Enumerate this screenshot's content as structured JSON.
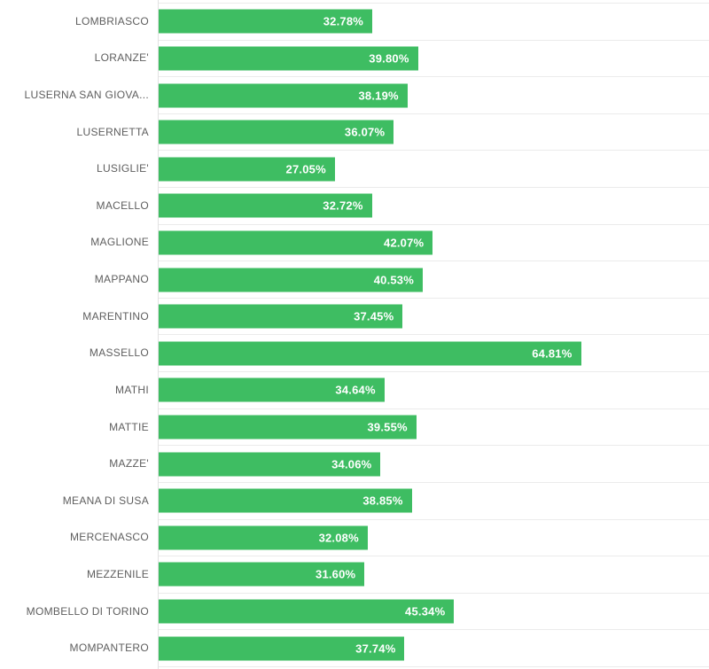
{
  "chart_data": {
    "type": "bar",
    "orientation": "horizontal",
    "title": "",
    "xlabel": "",
    "ylabel": "",
    "categories": [
      "LOMBRIASCO",
      "LORANZE'",
      "LUSERNA SAN GIOVA...",
      "LUSERNETTA",
      "LUSIGLIE'",
      "MACELLO",
      "MAGLIONE",
      "MAPPANO",
      "MARENTINO",
      "MASSELLO",
      "MATHI",
      "MATTIE",
      "MAZZE'",
      "MEANA DI SUSA",
      "MERCENASCO",
      "MEZZENILE",
      "MOMBELLO DI TORINO",
      "MOMPANTERO"
    ],
    "values": [
      32.78,
      39.8,
      38.19,
      36.07,
      27.05,
      32.72,
      42.07,
      40.53,
      37.45,
      64.81,
      34.64,
      39.55,
      34.06,
      38.85,
      32.08,
      31.6,
      45.34,
      37.74
    ],
    "value_labels": [
      "32.78%",
      "39.80%",
      "38.19%",
      "36.07%",
      "27.05%",
      "32.72%",
      "42.07%",
      "40.53%",
      "37.45%",
      "64.81%",
      "34.64%",
      "39.55%",
      "34.06%",
      "38.85%",
      "32.08%",
      "31.60%",
      "45.34%",
      "37.74%"
    ],
    "xlim": [
      0,
      84.6
    ],
    "grid": "horizontal-row-separators",
    "legend": "none",
    "colors": {
      "bar": "#3ebd62",
      "value_label": "#ffffff",
      "category_label": "#5e5e5e",
      "separator": "#ebebeb",
      "axis_line": "#e2e2e2",
      "background": "#ffffff"
    }
  }
}
